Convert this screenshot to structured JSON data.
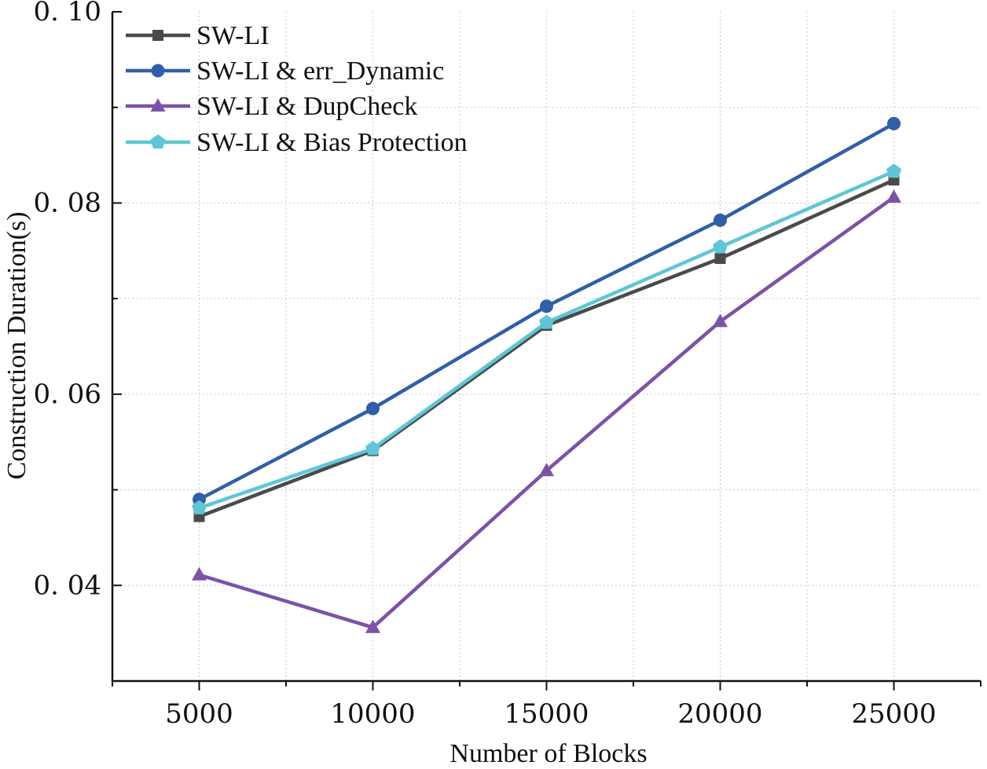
{
  "chart_data": {
    "type": "line",
    "title": "",
    "xlabel": "Number of Blocks",
    "ylabel": "Construction Duration(s)",
    "x": [
      5000,
      10000,
      15000,
      20000,
      25000
    ],
    "xlim": [
      2500,
      27500
    ],
    "ylim": [
      0.03,
      0.1
    ],
    "x_ticks": [
      5000,
      10000,
      15000,
      20000,
      25000
    ],
    "x_tick_labels": [
      "5000",
      "10000",
      "15000",
      "20000",
      "25000"
    ],
    "y_ticks": [
      0.04,
      0.06,
      0.08,
      0.1
    ],
    "y_tick_labels": [
      "0. 04",
      "0. 06",
      "0. 08",
      "0. 10"
    ],
    "grid": true,
    "legend_position": "top-left",
    "series": [
      {
        "name": "SW-LI",
        "marker": "square",
        "color": "#4a4a4a",
        "values": [
          0.0472,
          0.0541,
          0.0672,
          0.0742,
          0.0824
        ]
      },
      {
        "name": "SW-LI & err_Dynamic",
        "marker": "circle",
        "color": "#2f5fa8",
        "values": [
          0.049,
          0.0585,
          0.0692,
          0.0782,
          0.0883
        ]
      },
      {
        "name": "SW-LI & DupCheck",
        "marker": "triangle",
        "color": "#7b52a8",
        "values": [
          0.0411,
          0.0356,
          0.052,
          0.0676,
          0.0806
        ]
      },
      {
        "name": "SW-LI & Bias Protection",
        "marker": "pentagon",
        "color": "#5ec6d6",
        "values": [
          0.0481,
          0.0543,
          0.0675,
          0.0754,
          0.0833
        ]
      }
    ]
  }
}
